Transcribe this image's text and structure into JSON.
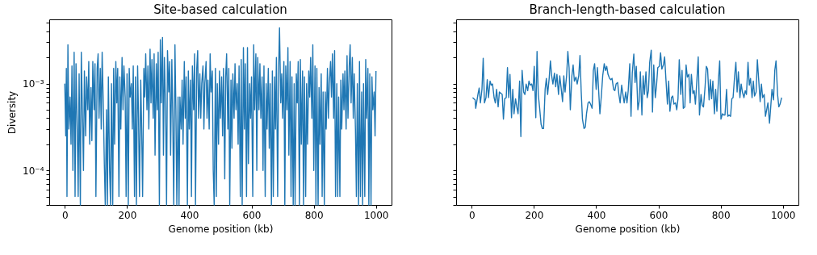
{
  "chart_data": [
    {
      "type": "line",
      "title": "Site-based calculation",
      "xlabel": "Genome position (kb)",
      "ylabel": "Diversity",
      "log": true,
      "xlim": [
        -50,
        1050
      ],
      "xticks": [
        0,
        200,
        400,
        600,
        800,
        1000
      ],
      "ylim": [
        4e-05,
        0.0055
      ],
      "yticks": [
        {
          "value": 4e-05,
          "label": null
        },
        {
          "value": 5e-05,
          "label": null
        },
        {
          "value": 6e-05,
          "label": null
        },
        {
          "value": 7e-05,
          "label": null
        },
        {
          "value": 8e-05,
          "label": null
        },
        {
          "value": 9e-05,
          "label": null
        },
        {
          "value": 0.0001,
          "label": "10⁻⁴"
        },
        {
          "value": 0.0002,
          "label": null
        },
        {
          "value": 0.0003,
          "label": null
        },
        {
          "value": 0.0004,
          "label": null
        },
        {
          "value": 0.0005,
          "label": null
        },
        {
          "value": 0.0006,
          "label": null
        },
        {
          "value": 0.0007,
          "label": null
        },
        {
          "value": 0.0008,
          "label": null
        },
        {
          "value": 0.0009,
          "label": null
        },
        {
          "value": 0.001,
          "label": "10⁻³"
        },
        {
          "value": 0.002,
          "label": null
        },
        {
          "value": 0.003,
          "label": null
        },
        {
          "value": 0.004,
          "label": null
        },
        {
          "value": 0.005,
          "label": null
        }
      ],
      "x": [
        0,
        3,
        5,
        7,
        10,
        13,
        17,
        20,
        23,
        26,
        30,
        33,
        36,
        40,
        43,
        46,
        50,
        53,
        57,
        60,
        63,
        67,
        70,
        74,
        77,
        80,
        84,
        87,
        90,
        94,
        97,
        100,
        104,
        107,
        110,
        114,
        117,
        120,
        124,
        127,
        130,
        134,
        137,
        140,
        144,
        147,
        150,
        154,
        157,
        160,
        164,
        167,
        170,
        174,
        177,
        180,
        184,
        187,
        190,
        194,
        197,
        200,
        204,
        207,
        210,
        214,
        217,
        220,
        224,
        227,
        230,
        234,
        237,
        240,
        244,
        247,
        250,
        254,
        257,
        260,
        264,
        267,
        270,
        274,
        277,
        280,
        284,
        287,
        290,
        294,
        297,
        300,
        304,
        307,
        310,
        314,
        317,
        320,
        324,
        327,
        330,
        334,
        337,
        340,
        344,
        347,
        350,
        354,
        357,
        360,
        364,
        367,
        370,
        374,
        377,
        380,
        384,
        387,
        390,
        394,
        397,
        400,
        404,
        407,
        410,
        414,
        417,
        420,
        424,
        427,
        430,
        434,
        437,
        440,
        444,
        447,
        450,
        454,
        457,
        460,
        464,
        467,
        470,
        474,
        477,
        480,
        484,
        487,
        490,
        494,
        497,
        500,
        504,
        507,
        510,
        514,
        517,
        520,
        524,
        527,
        530,
        534,
        537,
        540,
        544,
        547,
        550,
        554,
        557,
        560,
        564,
        567,
        570,
        574,
        577,
        580,
        584,
        587,
        590,
        594,
        597,
        600,
        604,
        607,
        610,
        614,
        617,
        620,
        624,
        627,
        630,
        634,
        637,
        640,
        644,
        647,
        650,
        654,
        657,
        660,
        664,
        667,
        670,
        674,
        677,
        680,
        684,
        687,
        690,
        694,
        697,
        700,
        704,
        707,
        710,
        714,
        717,
        720,
        724,
        727,
        730,
        734,
        737,
        740,
        744,
        747,
        750,
        754,
        757,
        760,
        764,
        767,
        770,
        774,
        777,
        780,
        784,
        787,
        790,
        794,
        797,
        800,
        804,
        807,
        810,
        814,
        817,
        820,
        824,
        827,
        830,
        834,
        837,
        840,
        844,
        847,
        850,
        854,
        857,
        860,
        864,
        867,
        870,
        874,
        877,
        880,
        884,
        887,
        890,
        894,
        897,
        900,
        904,
        907,
        910,
        914,
        917,
        920,
        924,
        927,
        930,
        934,
        937,
        940,
        944,
        947,
        950,
        954,
        957,
        960,
        964,
        967,
        970,
        974,
        977,
        980,
        984,
        987,
        990,
        994,
        997,
        1000
      ],
      "series": [
        {
          "color": "#1f77b4",
          "values": [
            0.001,
            0.00025,
            0.0015,
            5e-05,
            0.0028,
            0.0003,
            0.0007,
            0.0002,
            0.0016,
            0.0001,
            0.0023,
            5e-05,
            0.0017,
            0.0003,
            5e-05,
            0.0013,
            4e-05,
            0.0023,
            0.0004,
            0.0001,
            0.0014,
            0.00025,
            0.0012,
            0.0005,
            0.0018,
            0.0002,
            0.0009,
            0.00022,
            0.0018,
            0.0005,
            0.0017,
            5e-05,
            0.0015,
            0.0022,
            0.0004,
            0.0015,
            0.0003,
            0.0023,
            0.0005,
            0.00012,
            4e-05,
            0.0005,
            4e-05,
            0.0012,
            0.0001,
            4e-05,
            0.001,
            4e-05,
            0.0015,
            0.0002,
            0.0018,
            0.0006,
            0.0015,
            5e-05,
            0.0012,
            0.0003,
            0.002,
            0.0005,
            0.0016,
            0.0007,
            5e-05,
            0.0013,
            4e-05,
            0.0015,
            0.0007,
            0.001,
            0.0003,
            0.0016,
            5e-05,
            0.0012,
            4e-05,
            0.0016,
            0.0004,
            5e-05,
            0.0011,
            0.0003,
            5e-05,
            0.0015,
            0.0007,
            0.0022,
            0.0005,
            0.0016,
            0.0003,
            0.0025,
            0.0006,
            0.0019,
            0.0004,
            0.0022,
            0.00015,
            0.0017,
            0.0005,
            0.0023,
            4e-05,
            0.0032,
            0.0006,
            0.0034,
            0.00015,
            0.002,
            0.0005,
            4e-05,
            0.0024,
            0.0008,
            0.0018,
            0.00015,
            0.0019,
            0.0004,
            4e-05,
            0.0028,
            0.0005,
            4e-05,
            0.0007,
            4e-05,
            0.0007,
            0.0003,
            0.0011,
            0.0002,
            0.0018,
            0.0004,
            0.0012,
            4e-05,
            0.0014,
            0.0003,
            0.0011,
            5e-05,
            0.0016,
            0.0005,
            0.0022,
            4e-05,
            0.0015,
            0.0024,
            0.0004,
            0.0013,
            0.0004,
            0.001,
            0.0016,
            0.0003,
            0.001,
            0.0018,
            0.0004,
            0.0011,
            0.0003,
            0.0022,
            0.0008,
            0.0014,
            0.0001,
            4e-05,
            0.0015,
            5e-05,
            0.001,
            0.0002,
            0.0014,
            0.0004,
            0.0012,
            0.00025,
            0.0015,
            8e-05,
            0.0012,
            0.0022,
            0.0003,
            0.0015,
            4e-05,
            0.0011,
            0.00018,
            0.0013,
            0.0004,
            0.0017,
            0.0005,
            0.001,
            0.0002,
            0.0016,
            5e-05,
            0.0019,
            4e-05,
            0.0026,
            0.0003,
            0.0017,
            5e-05,
            0.0026,
            0.00012,
            0.001,
            0.0004,
            0.0012,
            5e-05,
            0.0028,
            0.0005,
            0.0022,
            0.0001,
            0.002,
            0.0005,
            0.0017,
            0.0004,
            0.0012,
            0.0001,
            0.0016,
            5e-05,
            0.001,
            0.0003,
            0.0015,
            0.00018,
            0.001,
            4e-05,
            0.0014,
            5e-05,
            0.0012,
            0.0003,
            0.002,
            5e-05,
            0.0014,
            0.0044,
            0.0006,
            0.0013,
            0.0004,
            0.0018,
            4e-05,
            0.0016,
            0.0005,
            0.0026,
            0.00015,
            0.0018,
            5e-05,
            0.0012,
            4e-05,
            0.001,
            4e-05,
            0.0013,
            0.0006,
            0.0018,
            4e-05,
            0.0019,
            0.0002,
            0.0014,
            4e-05,
            0.0012,
            5e-05,
            0.001,
            0.0002,
            0.0014,
            0.0007,
            0.002,
            0.0004,
            0.0028,
            0.0001,
            0.0016,
            4e-05,
            0.0015,
            4e-05,
            0.0009,
            0.0002,
            0.0013,
            5e-05,
            0.0008,
            4e-05,
            0.0008,
            0.0003,
            0.0015,
            0.0004,
            0.001,
            0.0018,
            0.0007,
            0.0022,
            0.0004,
            0.0024,
            5e-05,
            0.001,
            5e-05,
            0.0007,
            5e-05,
            0.0011,
            0.0003,
            0.0013,
            0.0005,
            0.0014,
            0.0003,
            0.0021,
            0.0004,
            0.0016,
            0.0028,
            0.0006,
            0.002,
            0.0004,
            0.0013,
            0.0003,
            5e-05,
            0.001,
            4e-05,
            0.0018,
            5e-05,
            0.0008,
            4e-05,
            0.001,
            5e-05,
            0.0019,
            0.0004,
            0.0015,
            4e-05,
            0.0013,
            4e-05,
            0.0012,
            0.0005,
            0.0008,
            0.00025,
            0.0014
          ]
        }
      ]
    },
    {
      "type": "line",
      "title": "Branch-length-based calculation",
      "xlabel": "Genome position (kb)",
      "log": true,
      "tick_labels": "x",
      "xlim": [
        -50,
        1050
      ],
      "xticks": [
        0,
        200,
        400,
        600,
        800,
        1000
      ],
      "ylim": [
        4e-05,
        0.0055
      ],
      "yticks": [
        {
          "value": 4e-05,
          "label": null
        },
        {
          "value": 5e-05,
          "label": null
        },
        {
          "value": 6e-05,
          "label": null
        },
        {
          "value": 7e-05,
          "label": null
        },
        {
          "value": 8e-05,
          "label": null
        },
        {
          "value": 9e-05,
          "label": null
        },
        {
          "value": 0.0001,
          "label": null
        },
        {
          "value": 0.0002,
          "label": null
        },
        {
          "value": 0.0003,
          "label": null
        },
        {
          "value": 0.0004,
          "label": null
        },
        {
          "value": 0.0005,
          "label": null
        },
        {
          "value": 0.0006,
          "label": null
        },
        {
          "value": 0.0007,
          "label": null
        },
        {
          "value": 0.0008,
          "label": null
        },
        {
          "value": 0.0009,
          "label": null
        },
        {
          "value": 0.001,
          "label": null
        },
        {
          "value": 0.002,
          "label": null
        },
        {
          "value": 0.003,
          "label": null
        },
        {
          "value": 0.004,
          "label": null
        },
        {
          "value": 0.005,
          "label": null
        }
      ],
      "x": [
        3,
        11,
        13,
        20,
        24,
        28,
        33,
        37,
        41,
        46,
        50,
        54,
        59,
        63,
        67,
        72,
        76,
        80,
        85,
        89,
        98,
        102,
        106,
        111,
        115,
        119,
        123,
        128,
        132,
        136,
        141,
        145,
        149,
        154,
        158,
        162,
        167,
        171,
        175,
        180,
        184,
        188,
        193,
        197,
        201,
        206,
        210,
        214,
        218,
        223,
        227,
        231,
        236,
        240,
        244,
        249,
        253,
        257,
        261,
        266,
        270,
        274,
        279,
        283,
        287,
        292,
        296,
        300,
        305,
        309,
        313,
        317,
        322,
        326,
        330,
        335,
        339,
        344,
        348,
        352,
        356,
        361,
        365,
        369,
        374,
        378,
        382,
        387,
        391,
        395,
        400,
        404,
        408,
        412,
        417,
        421,
        426,
        430,
        434,
        438,
        443,
        447,
        451,
        456,
        460,
        464,
        469,
        473,
        477,
        482,
        486,
        490,
        495,
        499,
        503,
        508,
        512,
        516,
        521,
        525,
        529,
        534,
        538,
        542,
        547,
        551,
        555,
        560,
        564,
        568,
        572,
        577,
        581,
        585,
        590,
        594,
        598,
        603,
        607,
        611,
        616,
        620,
        624,
        629,
        633,
        637,
        642,
        646,
        650,
        655,
        659,
        663,
        667,
        672,
        676,
        680,
        685,
        689,
        693,
        698,
        702,
        706,
        711,
        715,
        719,
        724,
        728,
        732,
        737,
        741,
        745,
        750,
        754,
        758,
        763,
        767,
        771,
        775,
        780,
        784,
        788,
        793,
        797,
        801,
        806,
        810,
        814,
        819,
        823,
        827,
        832,
        836,
        840,
        845,
        849,
        853,
        857,
        862,
        866,
        870,
        875,
        879,
        883,
        888,
        892,
        896,
        901,
        905,
        909,
        914,
        918,
        922,
        927,
        931,
        935,
        940,
        944,
        948,
        952,
        957,
        961,
        965,
        970,
        974,
        978,
        983,
        987,
        991,
        996
      ],
      "series": [
        {
          "color": "#1f77b4",
          "values": [
            0.00069,
            0.00065,
            0.00052,
            0.00075,
            0.00089,
            0.0006,
            0.00086,
            0.00196,
            0.0006,
            0.00069,
            0.00111,
            0.00069,
            0.00107,
            0.00096,
            0.00099,
            0.00069,
            0.0006,
            0.00086,
            0.00054,
            0.0008,
            0.00075,
            0.00039,
            0.00067,
            0.00069,
            0.00153,
            0.00069,
            0.00128,
            0.000405,
            0.00086,
            0.00045,
            0.00067,
            0.00054,
            0.00045,
            0.00107,
            0.000245,
            0.00142,
            0.0008,
            0.00075,
            0.00099,
            0.00083,
            0.00107,
            0.00096,
            0.00099,
            0.00083,
            0.00158,
            0.000405,
            0.00235,
            0.00075,
            0.00054,
            0.00034,
            0.000304,
            0.000304,
            0.00086,
            0.00115,
            0.00075,
            0.00115,
            0.00183,
            0.00123,
            0.00099,
            0.00132,
            0.00092,
            0.00128,
            0.00075,
            0.00123,
            0.00092,
            0.00062,
            0.00123,
            0.0008,
            0.00123,
            0.00235,
            0.00153,
            0.0005,
            0.00123,
            0.00164,
            0.00107,
            0.00119,
            0.00099,
            0.00123,
            0.00211,
            0.0008,
            0.00039,
            0.000304,
            0.000315,
            0.00045,
            0.0006,
            0.00062,
            0.00058,
            0.00052,
            0.00142,
            0.0017,
            0.00086,
            0.00153,
            0.00083,
            0.00045,
            0.00075,
            0.00123,
            0.0017,
            0.00142,
            0.00158,
            0.00128,
            0.00115,
            0.00111,
            0.00115,
            0.00086,
            0.00083,
            0.00099,
            0.00103,
            0.00075,
            0.0006,
            0.00096,
            0.00075,
            0.0006,
            0.0008,
            0.0006,
            0.00083,
            0.0017,
            0.00042,
            0.00132,
            0.00219,
            0.00103,
            0.00158,
            0.0005,
            0.00062,
            0.00137,
            0.000435,
            0.00123,
            0.00075,
            0.00137,
            0.00069,
            0.00083,
            0.00176,
            0.00243,
            0.00047,
            0.00164,
            0.00069,
            0.00096,
            0.00153,
            0.00158,
            0.00227,
            0.00147,
            0.00164,
            0.00203,
            0.00115,
            0.00058,
            0.00107,
            0.00048,
            0.00069,
            0.00072,
            0.00058,
            0.0006,
            0.0005,
            0.00067,
            0.00189,
            0.00075,
            0.00142,
            0.00052,
            0.00054,
            0.00164,
            0.00119,
            0.00128,
            0.0006,
            0.00128,
            0.00077,
            0.00083,
            0.00058,
            0.00115,
            0.00203,
            0.000435,
            0.00075,
            0.00056,
            0.00054,
            0.00092,
            0.00158,
            0.00147,
            0.00065,
            0.00111,
            0.00067,
            0.00107,
            0.00045,
            0.00086,
            0.00048,
            0.00111,
            0.00183,
            0.00039,
            0.00045,
            0.000435,
            0.000435,
            0.00086,
            0.00042,
            0.000435,
            0.00042,
            0.00067,
            0.00069,
            0.00123,
            0.00176,
            0.0008,
            0.00137,
            0.00069,
            0.00099,
            0.0008,
            0.00069,
            0.00083,
            0.00075,
            0.00176,
            0.00096,
            0.00115,
            0.00069,
            0.00107,
            0.00072,
            0.0008,
            0.00189,
            0.00115,
            0.00062,
            0.00099,
            0.00069,
            0.00075,
            0.00042,
            0.0005,
            0.0006,
            0.00035,
            0.00054,
            0.00086,
            0.00065,
            0.00142,
            0.00183,
            0.00075,
            0.00054,
            0.00058,
            0.00069
          ]
        }
      ]
    }
  ]
}
